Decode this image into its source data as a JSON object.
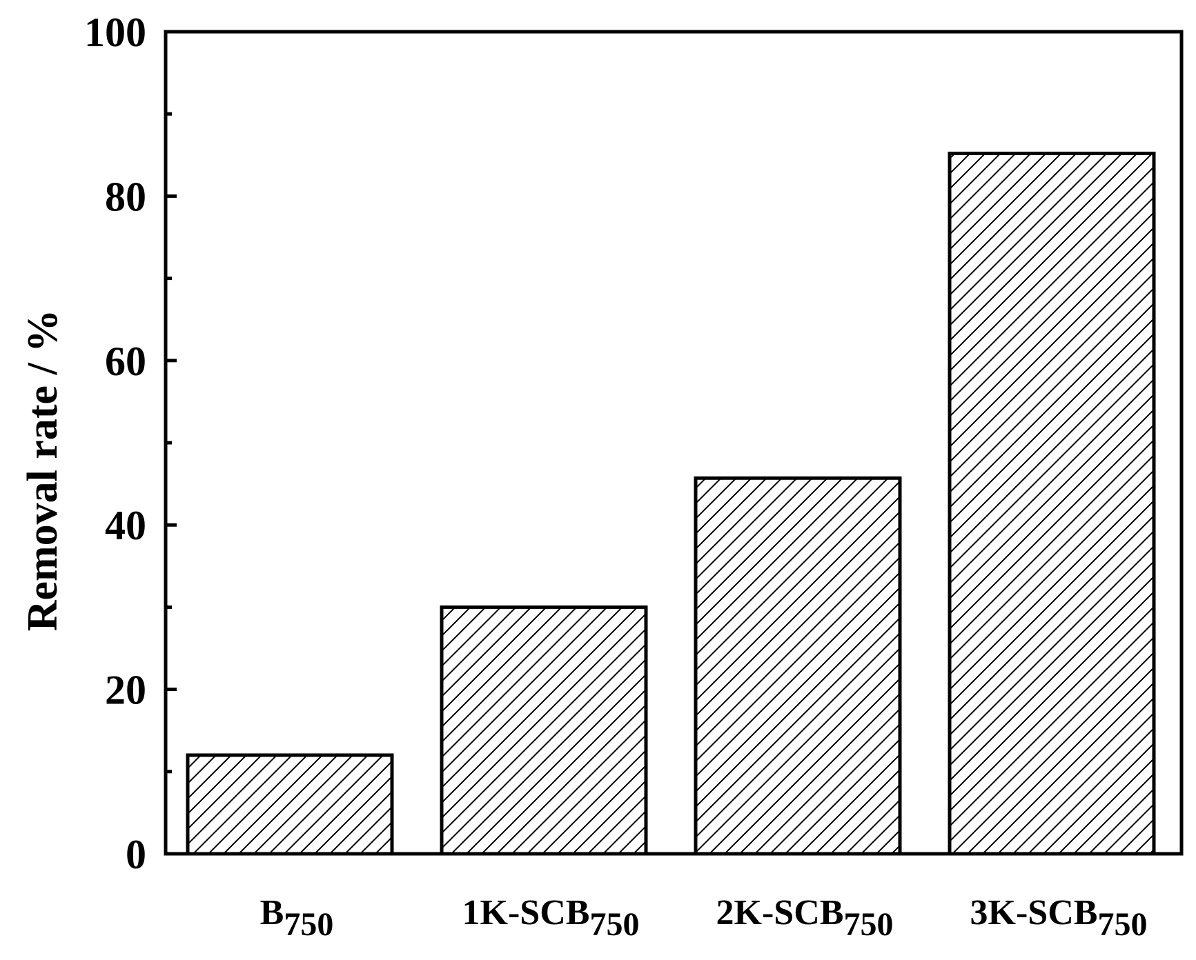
{
  "chart_data": {
    "type": "bar",
    "title": "",
    "xlabel": "",
    "ylabel": "Removal rate / %",
    "ylim": [
      0,
      100
    ],
    "yticks": [
      0,
      20,
      40,
      60,
      80,
      100
    ],
    "minor_yticks": [
      10,
      30,
      50,
      70,
      90
    ],
    "grid": false,
    "categories": [
      {
        "base": "B",
        "sub": "750"
      },
      {
        "base": "1K-SCB",
        "sub": "750"
      },
      {
        "base": "2K-SCB",
        "sub": "750"
      },
      {
        "base": "3K-SCB",
        "sub": "750"
      }
    ],
    "values": [
      12,
      30,
      45.7,
      85.2
    ],
    "colors": {
      "bar_fill": "#ffffff",
      "bar_stroke": "#000000",
      "hatch": "#000000",
      "axis": "#000000"
    }
  }
}
